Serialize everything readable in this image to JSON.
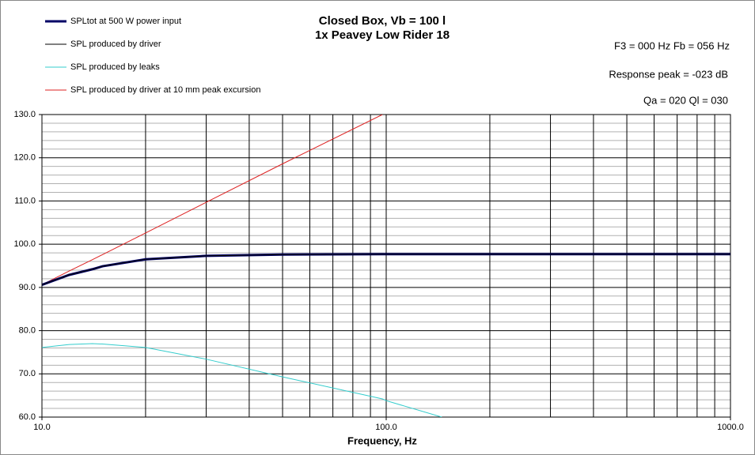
{
  "chart_data": {
    "type": "line",
    "title": [
      "Closed Box, Vb = 100 l",
      "1x Peavey Low Rider 18"
    ],
    "annotations": [
      "F3 = 000 Hz  Fb = 056 Hz",
      "Response peak = -023 dB",
      "Qa = 020  Ql = 030"
    ],
    "x_label": "Frequency, Hz",
    "log_x": true,
    "grid": true,
    "legend": "top-left",
    "x": [
      10,
      12,
      14,
      15,
      20,
      30,
      50,
      97.5,
      100,
      145,
      200,
      500,
      1000
    ],
    "series": [
      {
        "name": "SPLtot at 500 W power input",
        "color": "#000066",
        "width": 3,
        "values": [
          90.6,
          92.9,
          94.2,
          94.9,
          96.5,
          97.3,
          97.6,
          97.7,
          97.7,
          97.7,
          97.7,
          97.7,
          97.7
        ]
      },
      {
        "name": "SPL produced by driver",
        "color": "#000000",
        "width": 1,
        "values": [
          90.6,
          92.9,
          94.2,
          94.9,
          96.5,
          97.3,
          97.6,
          97.7,
          97.7,
          97.7,
          97.7,
          97.7,
          97.7
        ]
      },
      {
        "name": "SPL produced by leaks",
        "color": "#33cccc",
        "width": 1,
        "values": [
          76.1,
          76.8,
          77.0,
          76.9,
          76.1,
          73.4,
          69.3,
          64.2,
          63.8,
          60.0,
          null,
          null,
          null
        ]
      },
      {
        "name": "SPL produced by driver at 10 mm peak excursion",
        "color": "#dd2222",
        "width": 1,
        "values": [
          90.6,
          93.8,
          96.4,
          97.6,
          102.6,
          109.7,
          118.6,
          130.0,
          null,
          null,
          null,
          null,
          null
        ]
      }
    ],
    "xlim": [
      10,
      1000
    ],
    "xticks": [
      {
        "value": 10,
        "label": "10.0"
      },
      {
        "value": 100,
        "label": "100.0"
      },
      {
        "value": 1000,
        "label": "1000.0"
      }
    ],
    "x_minor_gridlines": [
      20,
      30,
      40,
      50,
      60,
      70,
      80,
      90,
      200,
      300,
      400,
      500,
      600,
      700,
      800,
      900
    ],
    "ylim": [
      60,
      130
    ],
    "yticks": [
      {
        "value": 60,
        "label": "60.0"
      },
      {
        "value": 70,
        "label": "70.0"
      },
      {
        "value": 80,
        "label": "80.0"
      },
      {
        "value": 90,
        "label": "90.0"
      },
      {
        "value": 100,
        "label": "100.0"
      },
      {
        "value": 110,
        "label": "110.0"
      },
      {
        "value": 120,
        "label": "120.0"
      },
      {
        "value": 130,
        "label": "130.0"
      }
    ],
    "y_minor_gridlines": [
      62,
      64,
      66,
      68,
      72,
      74,
      76,
      78,
      82,
      84,
      86,
      88,
      92,
      94,
      96,
      98,
      102,
      104,
      106,
      108,
      112,
      114,
      116,
      118,
      122,
      124,
      126,
      128
    ]
  }
}
